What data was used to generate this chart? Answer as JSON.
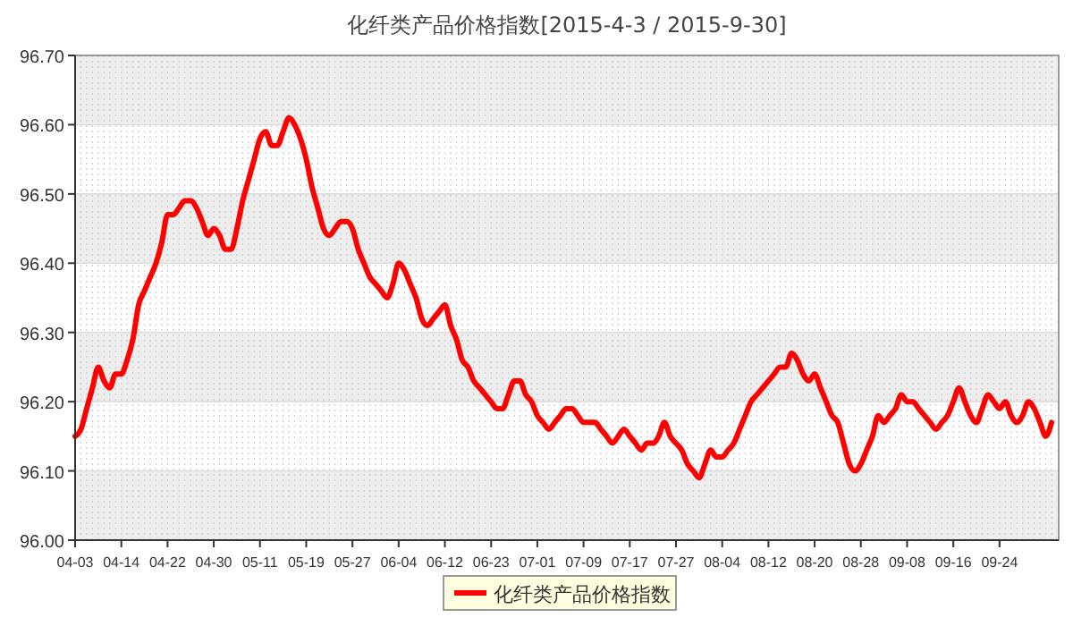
{
  "chart_data": {
    "type": "line",
    "title": "化纤类产品价格指数[2015-4-3 / 2015-9-30]",
    "categories": [
      "04-03",
      null,
      null,
      null,
      null,
      null,
      null,
      null,
      "04-14",
      null,
      null,
      null,
      null,
      null,
      null,
      null,
      "04-22",
      null,
      null,
      null,
      null,
      null,
      null,
      null,
      "04-30",
      null,
      null,
      null,
      null,
      null,
      null,
      null,
      "05-11",
      null,
      null,
      null,
      null,
      null,
      null,
      null,
      "05-19",
      null,
      null,
      null,
      null,
      null,
      null,
      null,
      "05-27",
      null,
      null,
      null,
      null,
      null,
      null,
      null,
      "06-04",
      null,
      null,
      null,
      null,
      null,
      null,
      null,
      "06-12",
      null,
      null,
      null,
      null,
      null,
      null,
      null,
      "06-23",
      null,
      null,
      null,
      null,
      null,
      null,
      null,
      "07-01",
      null,
      null,
      null,
      null,
      null,
      null,
      null,
      "07-09",
      null,
      null,
      null,
      null,
      null,
      null,
      null,
      "07-17",
      null,
      null,
      null,
      null,
      null,
      null,
      null,
      "07-27",
      null,
      null,
      null,
      null,
      null,
      null,
      null,
      "08-04",
      null,
      null,
      null,
      null,
      null,
      null,
      null,
      "08-12",
      null,
      null,
      null,
      null,
      null,
      null,
      null,
      "08-20",
      null,
      null,
      null,
      null,
      null,
      null,
      null,
      "08-28",
      null,
      null,
      null,
      null,
      null,
      null,
      null,
      "09-08",
      null,
      null,
      null,
      null,
      null,
      null,
      null,
      "09-16",
      null,
      null,
      null,
      null,
      null,
      null,
      null,
      "09-24",
      null,
      null,
      null,
      null,
      null,
      null,
      null,
      null,
      null
    ],
    "series": [
      {
        "name": "化纤类产品价格指数",
        "color": "#ff0000",
        "values": [
          96.15,
          96.16,
          96.19,
          96.22,
          96.25,
          96.23,
          96.22,
          96.24,
          96.24,
          96.26,
          96.29,
          96.34,
          96.36,
          96.38,
          96.4,
          96.43,
          96.47,
          96.47,
          96.48,
          96.49,
          96.49,
          96.48,
          96.46,
          96.44,
          96.45,
          96.44,
          96.42,
          96.42,
          96.45,
          96.49,
          96.52,
          96.55,
          96.58,
          96.59,
          96.57,
          96.57,
          96.59,
          96.61,
          96.6,
          96.58,
          96.55,
          96.51,
          96.48,
          96.45,
          96.44,
          96.45,
          96.46,
          96.46,
          96.45,
          96.42,
          96.4,
          96.38,
          96.37,
          96.36,
          96.35,
          96.37,
          96.4,
          96.39,
          96.37,
          96.35,
          96.32,
          96.31,
          96.32,
          96.33,
          96.34,
          96.31,
          96.29,
          96.26,
          96.25,
          96.23,
          96.22,
          96.21,
          96.2,
          96.19,
          96.19,
          96.21,
          96.23,
          96.23,
          96.21,
          96.2,
          96.18,
          96.17,
          96.16,
          96.17,
          96.18,
          96.19,
          96.19,
          96.18,
          96.17,
          96.17,
          96.17,
          96.16,
          96.15,
          96.14,
          96.15,
          96.16,
          96.15,
          96.14,
          96.13,
          96.14,
          96.14,
          96.15,
          96.17,
          96.15,
          96.14,
          96.13,
          96.11,
          96.1,
          96.09,
          96.11,
          96.13,
          96.12,
          96.12,
          96.13,
          96.14,
          96.16,
          96.18,
          96.2,
          96.21,
          96.22,
          96.23,
          96.24,
          96.25,
          96.25,
          96.27,
          96.26,
          96.24,
          96.23,
          96.24,
          96.22,
          96.2,
          96.18,
          96.17,
          96.14,
          96.11,
          96.1,
          96.11,
          96.13,
          96.15,
          96.18,
          96.17,
          96.18,
          96.19,
          96.21,
          96.2,
          96.2,
          96.19,
          96.18,
          96.17,
          96.16,
          96.17,
          96.18,
          96.2,
          96.22,
          96.2,
          96.18,
          96.17,
          96.19,
          96.21,
          96.2,
          96.19,
          96.2,
          96.18,
          96.17,
          96.18,
          96.2,
          96.19,
          96.17,
          96.15,
          96.17
        ]
      }
    ],
    "ylim": [
      96.0,
      96.7
    ],
    "yticks": [
      {
        "value": 96.0,
        "label": "96.00"
      },
      {
        "value": 96.1,
        "label": "96.10"
      },
      {
        "value": 96.2,
        "label": "96.20"
      },
      {
        "value": 96.3,
        "label": "96.30"
      },
      {
        "value": 96.4,
        "label": "96.40"
      },
      {
        "value": 96.5,
        "label": "96.50"
      },
      {
        "value": 96.6,
        "label": "96.60"
      },
      {
        "value": 96.7,
        "label": "96.70"
      }
    ],
    "grid": true,
    "legend": "bottom",
    "marker": "none",
    "line_style": "solid"
  }
}
